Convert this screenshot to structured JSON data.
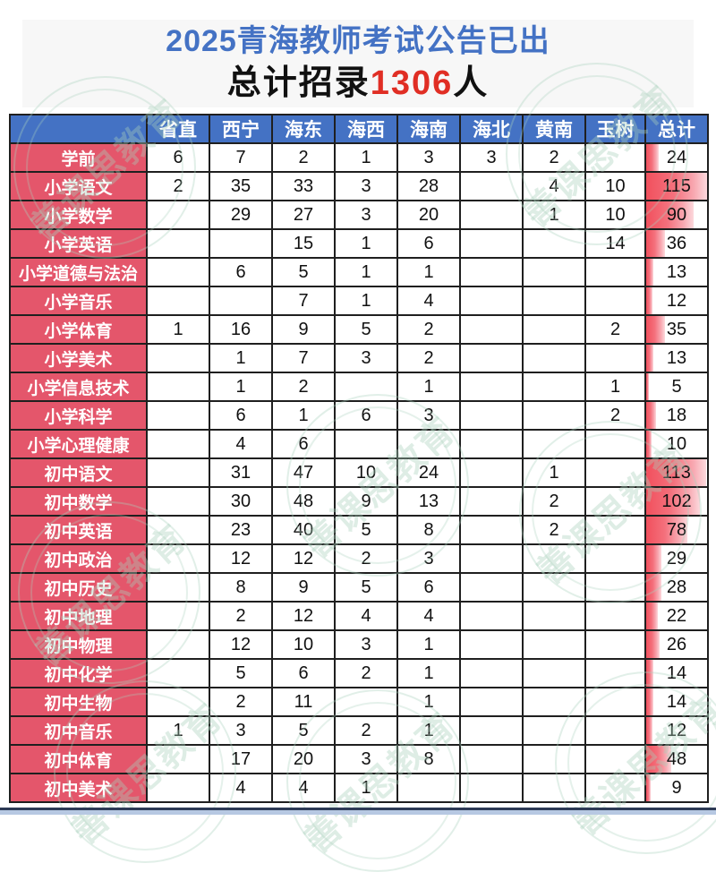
{
  "title": {
    "line1": "2025青海教师考试公告已出",
    "line2_prefix": "总计招录",
    "line2_number": "1306",
    "line2_suffix": "人"
  },
  "watermark": {
    "text": "善课思教育"
  },
  "colors": {
    "header_blue": "#4472c4",
    "row_label_red": "#e4566b",
    "title_blue": "#4472c4",
    "highlight_red": "#e02e24",
    "bar_red": "#f1505d"
  },
  "chart_data": {
    "type": "table",
    "title": "2025青海教师考试公告已出",
    "subtitle": "总计招录1306人",
    "corner_label": "",
    "columns": [
      "省直",
      "西宁",
      "海东",
      "海西",
      "海南",
      "海北",
      "黄南",
      "玉树",
      "总计"
    ],
    "bar_max": 115,
    "rows": [
      {
        "label": "学前",
        "values": [
          6,
          7,
          2,
          1,
          3,
          3,
          2,
          null
        ],
        "total": 24
      },
      {
        "label": "小学语文",
        "values": [
          2,
          35,
          33,
          3,
          28,
          null,
          4,
          10
        ],
        "total": 115
      },
      {
        "label": "小学数学",
        "values": [
          null,
          29,
          27,
          3,
          20,
          null,
          1,
          10
        ],
        "total": 90
      },
      {
        "label": "小学英语",
        "values": [
          null,
          null,
          15,
          1,
          6,
          null,
          null,
          14
        ],
        "total": 36
      },
      {
        "label": "小学道德与法治",
        "values": [
          null,
          6,
          5,
          1,
          1,
          null,
          null,
          null
        ],
        "total": 13
      },
      {
        "label": "小学音乐",
        "values": [
          null,
          null,
          7,
          1,
          4,
          null,
          null,
          null
        ],
        "total": 12
      },
      {
        "label": "小学体育",
        "values": [
          1,
          16,
          9,
          5,
          2,
          null,
          null,
          2
        ],
        "total": 35
      },
      {
        "label": "小学美术",
        "values": [
          null,
          1,
          7,
          3,
          2,
          null,
          null,
          null
        ],
        "total": 13
      },
      {
        "label": "小学信息技术",
        "values": [
          null,
          1,
          2,
          null,
          1,
          null,
          null,
          1
        ],
        "total": 5
      },
      {
        "label": "小学科学",
        "values": [
          null,
          6,
          1,
          6,
          3,
          null,
          null,
          2
        ],
        "total": 18
      },
      {
        "label": "小学心理健康",
        "values": [
          null,
          4,
          6,
          null,
          null,
          null,
          null,
          null
        ],
        "total": 10
      },
      {
        "label": "初中语文",
        "values": [
          null,
          31,
          47,
          10,
          24,
          null,
          1,
          null
        ],
        "total": 113
      },
      {
        "label": "初中数学",
        "values": [
          null,
          30,
          48,
          9,
          13,
          null,
          2,
          null
        ],
        "total": 102
      },
      {
        "label": "初中英语",
        "values": [
          null,
          23,
          40,
          5,
          8,
          null,
          2,
          null
        ],
        "total": 78
      },
      {
        "label": "初中政治",
        "values": [
          null,
          12,
          12,
          2,
          3,
          null,
          null,
          null
        ],
        "total": 29
      },
      {
        "label": "初中历史",
        "values": [
          null,
          8,
          9,
          5,
          6,
          null,
          null,
          null
        ],
        "total": 28
      },
      {
        "label": "初中地理",
        "values": [
          null,
          2,
          12,
          4,
          4,
          null,
          null,
          null
        ],
        "total": 22
      },
      {
        "label": "初中物理",
        "values": [
          null,
          12,
          10,
          3,
          1,
          null,
          null,
          null
        ],
        "total": 26
      },
      {
        "label": "初中化学",
        "values": [
          null,
          5,
          6,
          2,
          1,
          null,
          null,
          null
        ],
        "total": 14
      },
      {
        "label": "初中生物",
        "values": [
          null,
          2,
          11,
          null,
          1,
          null,
          null,
          null
        ],
        "total": 14
      },
      {
        "label": "初中音乐",
        "values": [
          1,
          3,
          5,
          2,
          1,
          null,
          null,
          null
        ],
        "total": 12
      },
      {
        "label": "初中体育",
        "values": [
          null,
          17,
          20,
          3,
          8,
          null,
          null,
          null
        ],
        "total": 48
      },
      {
        "label": "初中美术",
        "values": [
          null,
          4,
          4,
          1,
          null,
          null,
          null,
          null
        ],
        "total": 9
      }
    ]
  }
}
